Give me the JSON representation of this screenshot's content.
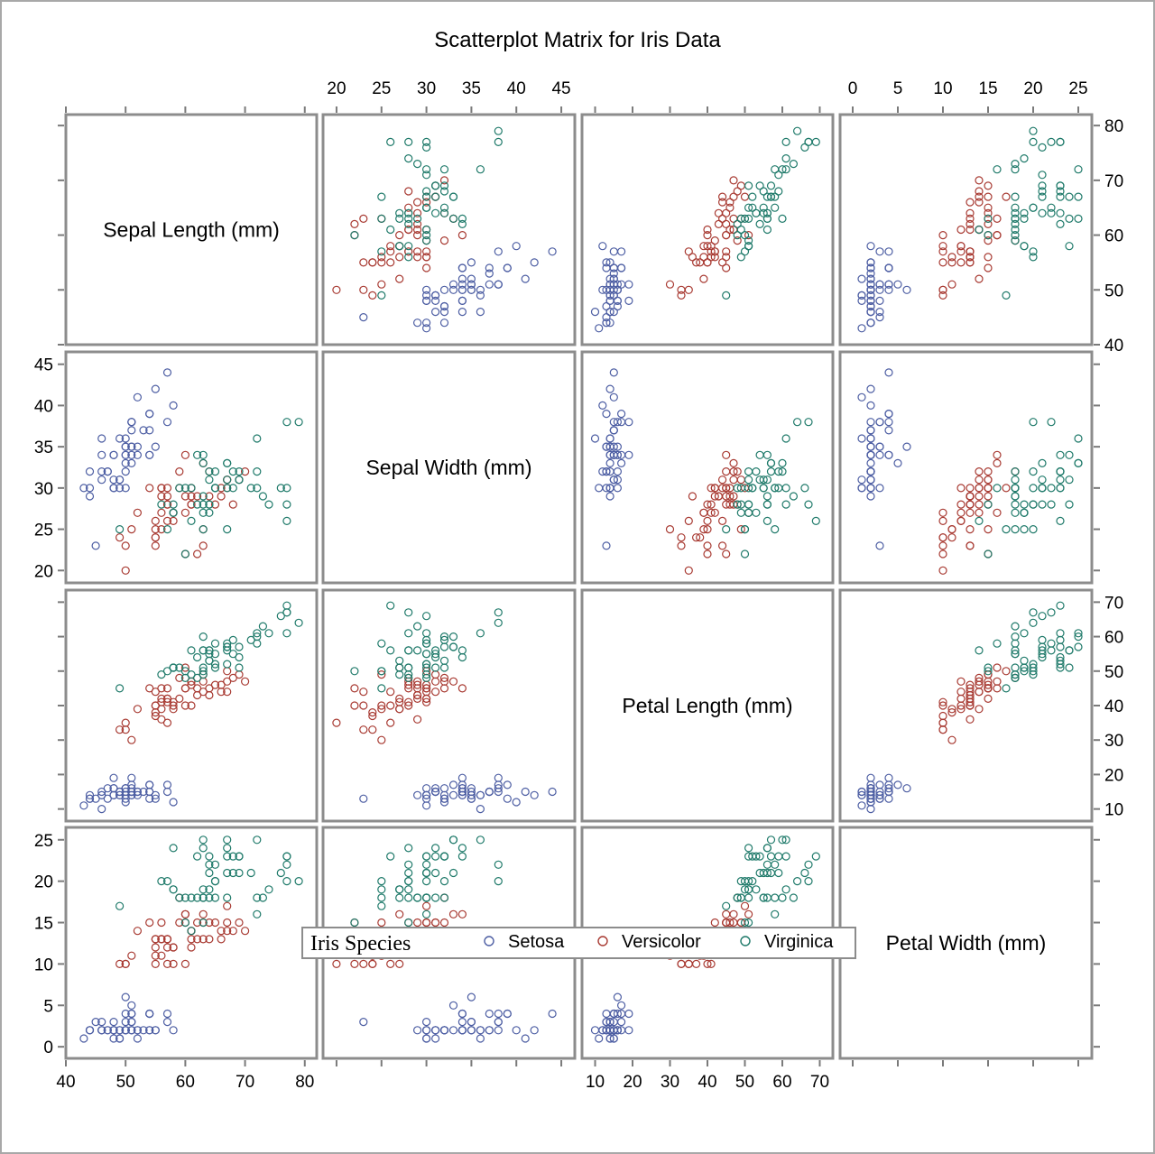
{
  "chart_data": {
    "type": "scatter",
    "title": "Scatterplot Matrix for Iris Data",
    "variables": [
      {
        "key": "sl",
        "label": "Sepal Length (mm)",
        "range": [
          40,
          82
        ],
        "ticks": [
          40,
          50,
          60,
          70,
          80
        ]
      },
      {
        "key": "sw",
        "label": "Sepal Width (mm)",
        "range": [
          18.5,
          46.5
        ],
        "ticks": [
          20,
          25,
          30,
          35,
          40,
          45
        ]
      },
      {
        "key": "pl",
        "label": "Petal Length (mm)",
        "range": [
          6.5,
          73.5
        ],
        "ticks": [
          10,
          20,
          30,
          40,
          50,
          60,
          70
        ]
      },
      {
        "key": "pw",
        "label": "Petal Width (mm)",
        "range": [
          -1.4,
          26.5
        ],
        "ticks": [
          0,
          5,
          10,
          15,
          20,
          25
        ]
      }
    ],
    "legend": {
      "title": "Iris Species",
      "position": "bottom",
      "entries": [
        {
          "name": "Setosa",
          "color": "#4d5ea3"
        },
        {
          "name": "Versicolor",
          "color": "#a83a32"
        },
        {
          "name": "Virginica",
          "color": "#1f7a6a"
        }
      ]
    },
    "point_fields": [
      "sl",
      "sw",
      "pl",
      "pw"
    ],
    "series": [
      {
        "name": "Setosa",
        "color": "#4d5ea3",
        "points": [
          [
            51,
            35,
            14,
            2
          ],
          [
            49,
            30,
            14,
            2
          ],
          [
            47,
            32,
            13,
            2
          ],
          [
            46,
            31,
            15,
            2
          ],
          [
            50,
            36,
            14,
            2
          ],
          [
            54,
            39,
            17,
            4
          ],
          [
            46,
            34,
            14,
            3
          ],
          [
            50,
            34,
            15,
            2
          ],
          [
            44,
            29,
            14,
            2
          ],
          [
            49,
            31,
            15,
            1
          ],
          [
            54,
            37,
            15,
            2
          ],
          [
            48,
            34,
            16,
            2
          ],
          [
            48,
            30,
            14,
            1
          ],
          [
            43,
            30,
            11,
            1
          ],
          [
            58,
            40,
            12,
            2
          ],
          [
            57,
            44,
            15,
            4
          ],
          [
            54,
            39,
            13,
            4
          ],
          [
            51,
            35,
            14,
            3
          ],
          [
            57,
            38,
            17,
            3
          ],
          [
            51,
            38,
            15,
            3
          ],
          [
            54,
            34,
            17,
            2
          ],
          [
            51,
            37,
            15,
            4
          ],
          [
            46,
            36,
            10,
            2
          ],
          [
            51,
            33,
            17,
            5
          ],
          [
            48,
            34,
            19,
            2
          ],
          [
            50,
            30,
            16,
            2
          ],
          [
            50,
            34,
            16,
            4
          ],
          [
            52,
            35,
            15,
            2
          ],
          [
            52,
            34,
            14,
            2
          ],
          [
            47,
            32,
            16,
            2
          ],
          [
            48,
            31,
            16,
            2
          ],
          [
            54,
            34,
            15,
            4
          ],
          [
            52,
            41,
            15,
            1
          ],
          [
            55,
            42,
            14,
            2
          ],
          [
            49,
            31,
            15,
            2
          ],
          [
            50,
            32,
            12,
            2
          ],
          [
            55,
            35,
            13,
            2
          ],
          [
            49,
            36,
            14,
            1
          ],
          [
            44,
            30,
            13,
            2
          ],
          [
            51,
            34,
            15,
            2
          ],
          [
            50,
            35,
            13,
            3
          ],
          [
            45,
            23,
            13,
            3
          ],
          [
            44,
            32,
            13,
            2
          ],
          [
            50,
            35,
            16,
            6
          ],
          [
            51,
            38,
            19,
            4
          ],
          [
            48,
            30,
            14,
            3
          ],
          [
            51,
            38,
            16,
            2
          ],
          [
            46,
            32,
            14,
            2
          ],
          [
            53,
            37,
            15,
            2
          ],
          [
            50,
            33,
            14,
            2
          ]
        ]
      },
      {
        "name": "Versicolor",
        "color": "#a83a32",
        "points": [
          [
            70,
            32,
            47,
            14
          ],
          [
            64,
            32,
            45,
            15
          ],
          [
            69,
            31,
            49,
            15
          ],
          [
            55,
            23,
            40,
            13
          ],
          [
            65,
            28,
            46,
            15
          ],
          [
            57,
            28,
            45,
            13
          ],
          [
            63,
            33,
            47,
            16
          ],
          [
            49,
            24,
            33,
            10
          ],
          [
            66,
            29,
            46,
            13
          ],
          [
            52,
            27,
            39,
            14
          ],
          [
            50,
            20,
            35,
            10
          ],
          [
            59,
            30,
            42,
            15
          ],
          [
            60,
            22,
            40,
            10
          ],
          [
            61,
            29,
            47,
            14
          ],
          [
            56,
            29,
            36,
            13
          ],
          [
            67,
            31,
            44,
            14
          ],
          [
            56,
            30,
            45,
            15
          ],
          [
            58,
            27,
            41,
            10
          ],
          [
            62,
            22,
            45,
            15
          ],
          [
            56,
            25,
            39,
            11
          ],
          [
            59,
            32,
            48,
            18
          ],
          [
            61,
            28,
            40,
            13
          ],
          [
            63,
            25,
            49,
            15
          ],
          [
            61,
            28,
            47,
            12
          ],
          [
            64,
            29,
            43,
            13
          ],
          [
            66,
            30,
            44,
            14
          ],
          [
            68,
            28,
            48,
            14
          ],
          [
            67,
            30,
            50,
            17
          ],
          [
            60,
            29,
            45,
            15
          ],
          [
            57,
            26,
            35,
            10
          ],
          [
            55,
            24,
            38,
            11
          ],
          [
            55,
            24,
            37,
            10
          ],
          [
            58,
            27,
            39,
            12
          ],
          [
            60,
            27,
            51,
            16
          ],
          [
            54,
            30,
            45,
            15
          ],
          [
            60,
            34,
            45,
            16
          ],
          [
            67,
            31,
            47,
            15
          ],
          [
            63,
            23,
            44,
            13
          ],
          [
            56,
            30,
            41,
            13
          ],
          [
            55,
            25,
            40,
            13
          ],
          [
            55,
            26,
            44,
            12
          ],
          [
            61,
            30,
            46,
            14
          ],
          [
            58,
            26,
            40,
            12
          ],
          [
            50,
            23,
            33,
            10
          ],
          [
            56,
            27,
            42,
            13
          ],
          [
            57,
            30,
            42,
            12
          ],
          [
            57,
            29,
            42,
            13
          ],
          [
            62,
            29,
            43,
            13
          ],
          [
            51,
            25,
            30,
            11
          ],
          [
            57,
            28,
            41,
            13
          ]
        ]
      },
      {
        "name": "Virginica",
        "color": "#1f7a6a",
        "points": [
          [
            63,
            33,
            60,
            25
          ],
          [
            58,
            27,
            51,
            19
          ],
          [
            71,
            30,
            59,
            21
          ],
          [
            63,
            29,
            56,
            18
          ],
          [
            65,
            30,
            58,
            22
          ],
          [
            76,
            30,
            66,
            21
          ],
          [
            49,
            25,
            45,
            17
          ],
          [
            73,
            29,
            63,
            18
          ],
          [
            67,
            25,
            58,
            18
          ],
          [
            72,
            36,
            61,
            25
          ],
          [
            65,
            32,
            51,
            20
          ],
          [
            64,
            27,
            53,
            19
          ],
          [
            68,
            30,
            55,
            21
          ],
          [
            57,
            25,
            50,
            20
          ],
          [
            58,
            28,
            51,
            24
          ],
          [
            64,
            32,
            53,
            23
          ],
          [
            65,
            30,
            55,
            18
          ],
          [
            77,
            38,
            67,
            22
          ],
          [
            77,
            26,
            69,
            23
          ],
          [
            60,
            22,
            50,
            15
          ],
          [
            69,
            32,
            57,
            23
          ],
          [
            56,
            28,
            49,
            20
          ],
          [
            77,
            28,
            67,
            20
          ],
          [
            63,
            27,
            49,
            18
          ],
          [
            67,
            33,
            57,
            21
          ],
          [
            72,
            32,
            60,
            18
          ],
          [
            62,
            28,
            48,
            18
          ],
          [
            61,
            30,
            49,
            18
          ],
          [
            64,
            28,
            56,
            21
          ],
          [
            72,
            30,
            58,
            16
          ],
          [
            74,
            28,
            61,
            19
          ],
          [
            79,
            38,
            64,
            20
          ],
          [
            64,
            28,
            56,
            22
          ],
          [
            63,
            28,
            51,
            15
          ],
          [
            61,
            26,
            56,
            14
          ],
          [
            77,
            30,
            61,
            23
          ],
          [
            63,
            34,
            56,
            24
          ],
          [
            64,
            31,
            55,
            18
          ],
          [
            60,
            30,
            48,
            18
          ],
          [
            69,
            31,
            54,
            21
          ],
          [
            67,
            31,
            56,
            24
          ],
          [
            69,
            31,
            51,
            23
          ],
          [
            58,
            27,
            51,
            19
          ],
          [
            68,
            32,
            59,
            23
          ],
          [
            67,
            33,
            57,
            25
          ],
          [
            67,
            30,
            52,
            23
          ],
          [
            63,
            25,
            50,
            19
          ],
          [
            65,
            30,
            52,
            20
          ],
          [
            62,
            34,
            54,
            23
          ],
          [
            59,
            30,
            51,
            18
          ]
        ]
      }
    ]
  }
}
